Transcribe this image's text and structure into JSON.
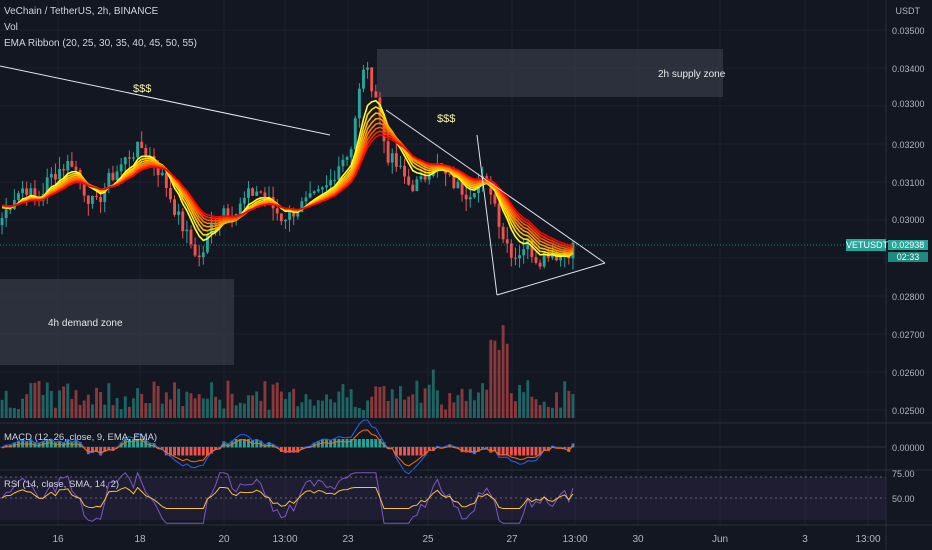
{
  "header": {
    "title": "VeChain / TetherUS, 2h, BINANCE",
    "vol_label": "Vol",
    "ema_label": "EMA Ribbon (20, 25, 30, 35, 40, 45, 50, 55)"
  },
  "panels": {
    "macd_label": "MACD (12, 26, close, 9, EMA, EMA)",
    "rsi_label": "RSI (14, close, SMA, 14, 2)"
  },
  "price_axis": {
    "unit": "USDT",
    "ticks": [
      "0.03500",
      "0.03400",
      "0.03300",
      "0.03200",
      "0.03100",
      "0.03000",
      "0.02800",
      "0.02700",
      "0.02600",
      "0.02500"
    ],
    "current_symbol": "VETUSDT",
    "current_price": "0.02938",
    "countdown": "02:33",
    "macd_tick": "0.00000",
    "rsi_ticks": [
      "75.00",
      "50.00"
    ]
  },
  "time_axis": {
    "ticks": [
      "16",
      "18",
      "20",
      "13:00",
      "23",
      "25",
      "27",
      "13:00",
      "30",
      "Jun",
      "3",
      "13:00"
    ]
  },
  "annotations": {
    "supply_zone": "2h supply zone",
    "demand_zone": "4h demand zone",
    "dollar_1": "$$$",
    "dollar_2": "$$$"
  },
  "colors": {
    "background": "#131722",
    "up": "#26a69a",
    "down": "#ef5350",
    "ribbon": [
      "#ff0000",
      "#ff2a00",
      "#ff5500",
      "#ff7700",
      "#ff9900",
      "#ffbb00",
      "#ffdd00",
      "#ffff33"
    ],
    "zone": "#2a2e39"
  },
  "chart_data": {
    "type": "candlestick",
    "symbol": "VETUSDT",
    "exchange": "BINANCE",
    "interval": "2h",
    "ylim": [
      0.0245,
      0.0355
    ],
    "x_range_labels": [
      "16",
      "18",
      "20",
      "13:00",
      "23",
      "25",
      "27",
      "13:00",
      "30",
      "Jun",
      "3",
      "13:00"
    ],
    "close_path": [
      0.0302,
      0.0308,
      0.0311,
      0.0306,
      0.0313,
      0.0316,
      0.0318,
      0.031,
      0.0305,
      0.0312,
      0.0316,
      0.032,
      0.0322,
      0.0318,
      0.0312,
      0.0303,
      0.0296,
      0.029,
      0.03,
      0.0305,
      0.0303,
      0.0308,
      0.031,
      0.0306,
      0.0302,
      0.0304,
      0.0306,
      0.0308,
      0.0311,
      0.0318,
      0.0322,
      0.0345,
      0.0338,
      0.032,
      0.0316,
      0.0311,
      0.0312,
      0.0318,
      0.0314,
      0.0311,
      0.0309,
      0.0313,
      0.031,
      0.0297,
      0.0291,
      0.0295,
      0.029,
      0.0293,
      0.0291,
      0.02938
    ],
    "current_price": 0.02938,
    "zones": [
      {
        "label": "2h supply zone",
        "y_top": 0.03445,
        "y_bottom": 0.03325
      },
      {
        "label": "4h demand zone",
        "y_top": 0.0292,
        "y_bottom": 0.02635
      }
    ],
    "macd_zero": 0.0,
    "rsi_levels": [
      75,
      50
    ]
  }
}
